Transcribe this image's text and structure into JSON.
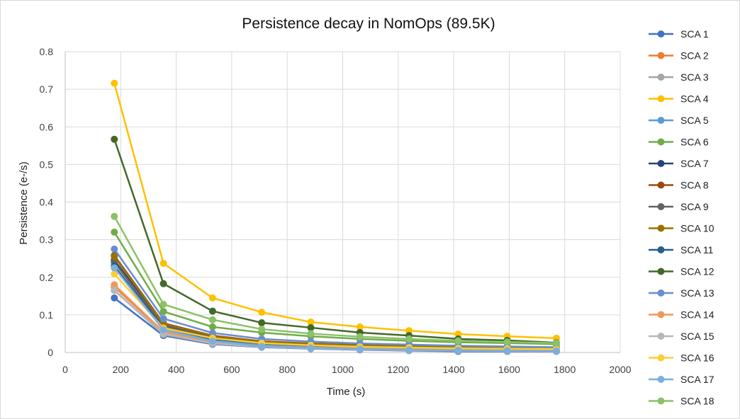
{
  "chart_data": {
    "type": "line",
    "title": "Persistence decay in NomOps (89.5K)",
    "xlabel": "Time (s)",
    "ylabel": "Persistence (e-/s)",
    "xlim": [
      0,
      2000
    ],
    "ylim": [
      0,
      0.8
    ],
    "xticks": [
      0,
      200,
      400,
      600,
      800,
      1000,
      1200,
      1400,
      1600,
      1800,
      2000
    ],
    "yticks": [
      0,
      0.1,
      0.2,
      0.3,
      0.4,
      0.5,
      0.6,
      0.7,
      0.8
    ],
    "grid": true,
    "legend_placement": "right",
    "markers": "circle",
    "x": [
      177,
      354,
      531,
      708,
      885,
      1062,
      1239,
      1416,
      1593,
      1770
    ],
    "series": [
      {
        "name": "SCA 1",
        "color": "#4472C4",
        "values": [
          0.145,
          0.045,
          0.022,
          0.014,
          0.01,
          0.007,
          0.005,
          0.003,
          0.003,
          0.003
        ]
      },
      {
        "name": "SCA 2",
        "color": "#ED7D31",
        "values": [
          0.175,
          0.055,
          0.028,
          0.018,
          0.014,
          0.011,
          0.009,
          0.008,
          0.007,
          0.006
        ]
      },
      {
        "name": "SCA 3",
        "color": "#A5A5A5",
        "values": [
          0.165,
          0.048,
          0.024,
          0.015,
          0.011,
          0.008,
          0.006,
          0.005,
          0.004,
          0.004
        ]
      },
      {
        "name": "SCA 4",
        "color": "#FFC000",
        "values": [
          0.716,
          0.237,
          0.145,
          0.107,
          0.081,
          0.068,
          0.058,
          0.049,
          0.043,
          0.038
        ]
      },
      {
        "name": "SCA 5",
        "color": "#5B9BD5",
        "values": [
          0.228,
          0.06,
          0.032,
          0.02,
          0.015,
          0.012,
          0.01,
          0.008,
          0.007,
          0.006
        ]
      },
      {
        "name": "SCA 6",
        "color": "#70AD47",
        "values": [
          0.32,
          0.109,
          0.068,
          0.053,
          0.043,
          0.036,
          0.031,
          0.027,
          0.025,
          0.022
        ]
      },
      {
        "name": "SCA 7",
        "color": "#264478",
        "values": [
          0.245,
          0.075,
          0.042,
          0.028,
          0.022,
          0.018,
          0.015,
          0.013,
          0.011,
          0.01
        ]
      },
      {
        "name": "SCA 8",
        "color": "#9E480E",
        "values": [
          0.258,
          0.078,
          0.045,
          0.03,
          0.024,
          0.02,
          0.017,
          0.014,
          0.012,
          0.011
        ]
      },
      {
        "name": "SCA 9",
        "color": "#636363",
        "values": [
          0.24,
          0.07,
          0.04,
          0.027,
          0.021,
          0.017,
          0.014,
          0.012,
          0.01,
          0.009
        ]
      },
      {
        "name": "SCA 10",
        "color": "#997300",
        "values": [
          0.255,
          0.076,
          0.044,
          0.029,
          0.023,
          0.019,
          0.016,
          0.014,
          0.012,
          0.011
        ]
      },
      {
        "name": "SCA 11",
        "color": "#255E91",
        "values": [
          0.23,
          0.065,
          0.036,
          0.024,
          0.018,
          0.015,
          0.012,
          0.01,
          0.009,
          0.008
        ]
      },
      {
        "name": "SCA 12",
        "color": "#43682B",
        "values": [
          0.567,
          0.183,
          0.11,
          0.079,
          0.066,
          0.053,
          0.045,
          0.036,
          0.032,
          0.026
        ]
      },
      {
        "name": "SCA 13",
        "color": "#698ED0",
        "values": [
          0.275,
          0.09,
          0.052,
          0.036,
          0.029,
          0.024,
          0.021,
          0.018,
          0.016,
          0.014
        ]
      },
      {
        "name": "SCA 14",
        "color": "#F1975A",
        "values": [
          0.18,
          0.055,
          0.028,
          0.017,
          0.013,
          0.01,
          0.008,
          0.007,
          0.006,
          0.005
        ]
      },
      {
        "name": "SCA 15",
        "color": "#B7B7B7",
        "values": [
          0.166,
          0.05,
          0.024,
          0.015,
          0.011,
          0.008,
          0.006,
          0.005,
          0.005,
          0.004
        ]
      },
      {
        "name": "SCA 16",
        "color": "#FFCD33",
        "values": [
          0.209,
          0.065,
          0.038,
          0.025,
          0.019,
          0.015,
          0.013,
          0.011,
          0.01,
          0.009
        ]
      },
      {
        "name": "SCA 17",
        "color": "#7CAFDD",
        "values": [
          0.225,
          0.06,
          0.03,
          0.016,
          0.012,
          0.009,
          0.007,
          0.006,
          0.005,
          0.004
        ]
      },
      {
        "name": "SCA 18",
        "color": "#8CC168",
        "values": [
          0.362,
          0.128,
          0.087,
          0.062,
          0.05,
          0.042,
          0.036,
          0.031,
          0.028,
          0.025
        ]
      }
    ]
  }
}
